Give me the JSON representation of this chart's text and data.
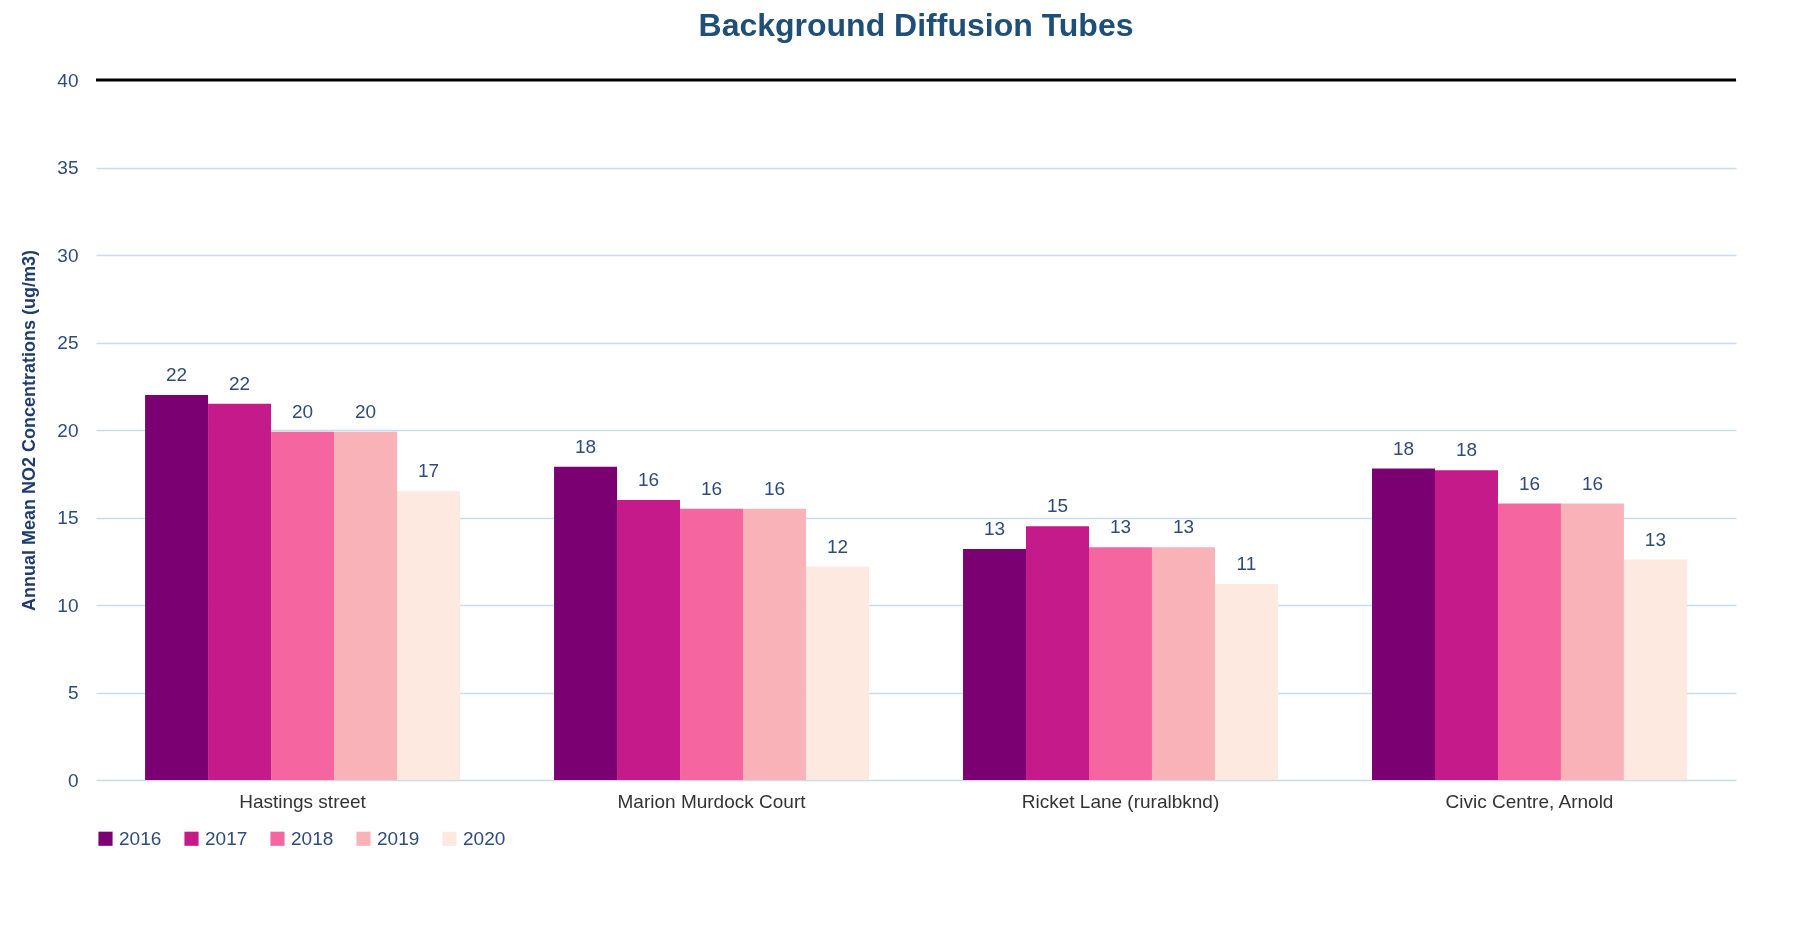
{
  "chart_data": {
    "type": "bar",
    "title": "Background Diffusion Tubes",
    "ylabel": "Annual Mean NO2 Concentrations (ug/m3)",
    "categories": [
      "Hastings street",
      "Marion Murdock Court",
      "Ricket Lane  (ruralbknd)",
      "Civic Centre, Arnold"
    ],
    "series": [
      {
        "name": "2016",
        "color": "#7b0072",
        "values": [
          22.0,
          17.9,
          13.2,
          17.8
        ],
        "value_labels": [
          "22",
          "18",
          "13",
          "18"
        ]
      },
      {
        "name": "2017",
        "color": "#c41a8a",
        "values": [
          21.5,
          16.0,
          14.5,
          17.7
        ],
        "value_labels": [
          "22",
          "16",
          "15",
          "18"
        ]
      },
      {
        "name": "2018",
        "color": "#f566a0",
        "values": [
          19.9,
          15.5,
          13.3,
          15.8
        ],
        "value_labels": [
          "20",
          "16",
          "13",
          "16"
        ]
      },
      {
        "name": "2019",
        "color": "#f9b3b8",
        "values": [
          19.9,
          15.5,
          13.3,
          15.8
        ],
        "value_labels": [
          "20",
          "16",
          "13",
          "16"
        ]
      },
      {
        "name": "2020",
        "color": "#fde9e0",
        "values": [
          16.5,
          12.2,
          11.2,
          12.6
        ],
        "value_labels": [
          "17",
          "12",
          "11",
          "13"
        ]
      }
    ],
    "ylim": [
      0,
      40
    ],
    "yticks": [
      0,
      5,
      10,
      15,
      20,
      25,
      30,
      35,
      40
    ],
    "grid": "y",
    "legend": "bottom",
    "ref_lines": [
      {
        "axis": "y",
        "value": 40,
        "color": "#000000"
      }
    ]
  }
}
